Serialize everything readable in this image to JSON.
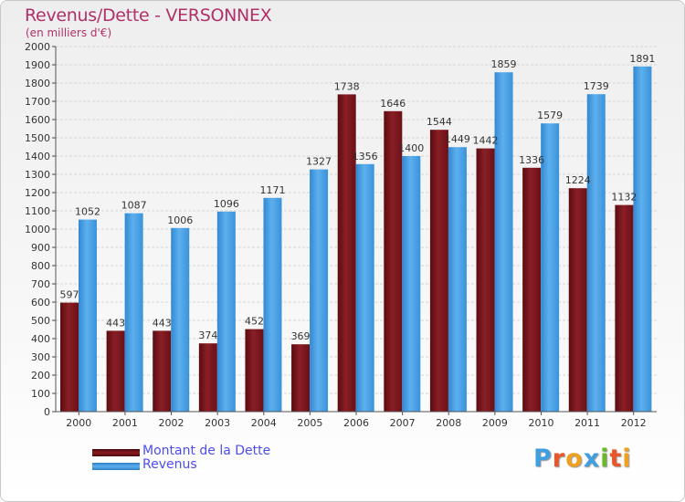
{
  "header": {
    "title": "Revenus/Dette - VERSONNEX",
    "subtitle": "(en milliers d'€)"
  },
  "chart_data": {
    "type": "bar",
    "categories": [
      "2000",
      "2001",
      "2002",
      "2003",
      "2004",
      "2005",
      "2006",
      "2007",
      "2008",
      "2009",
      "2010",
      "2011",
      "2012"
    ],
    "series": [
      {
        "name": "Montant de la Dette",
        "color": "#7a1218",
        "values": [
          597,
          443,
          443,
          374,
          452,
          369,
          1738,
          1646,
          1544,
          1442,
          1336,
          1224,
          1132
        ],
        "labels": [
          "597",
          "443",
          "443",
          "374",
          "452",
          "369",
          "1738",
          "1646",
          "1544",
          "1442",
          "1336",
          "1224",
          "1132"
        ]
      },
      {
        "name": "Revenus",
        "color": "#3d9be3",
        "values": [
          1052,
          1087,
          1006,
          1096,
          1171,
          1327,
          1356,
          1400,
          1449,
          1859,
          1579,
          1739,
          1891
        ],
        "labels": [
          "1052",
          "1087",
          "1006",
          "1096",
          "1171",
          "1327",
          "1356",
          "1400",
          "1449",
          "1859",
          "1579",
          "1739",
          "1891"
        ]
      }
    ],
    "ylim": [
      0,
      2000
    ],
    "yticks": [
      "0",
      "100",
      "200",
      "300",
      "400",
      "500",
      "600",
      "700",
      "800",
      "900",
      "1000",
      "1100",
      "1200",
      "1300",
      "1400",
      "1500",
      "1600",
      "1700",
      "1800",
      "1900",
      "2000"
    ],
    "grid": true,
    "legend": "bottom-left"
  },
  "logo": {
    "letters": [
      {
        "char": "P",
        "color": "#3f9fe0"
      },
      {
        "char": "r",
        "color": "#e8562a"
      },
      {
        "char": "o",
        "color": "#f0a020"
      },
      {
        "char": "x",
        "color": "#3f9fe0"
      },
      {
        "char": "i",
        "color": "#6cb82c"
      },
      {
        "char": "t",
        "color": "#e8562a"
      },
      {
        "char": "i",
        "color": "#f0a020"
      }
    ]
  }
}
